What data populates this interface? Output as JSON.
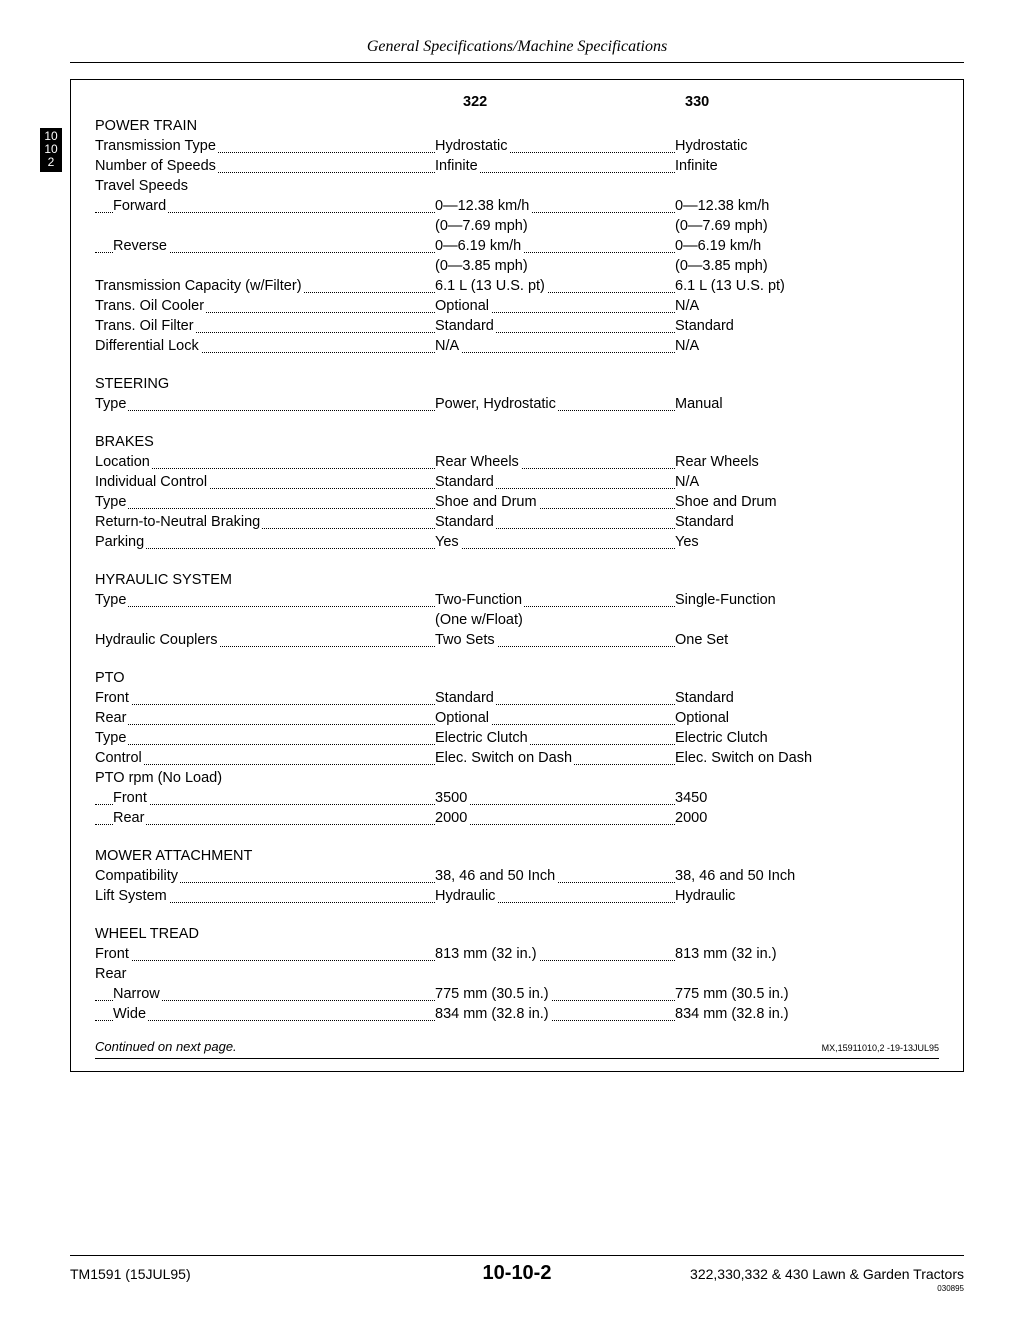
{
  "header": {
    "title": "General Specifications/Machine Specifications"
  },
  "sideTab": {
    "l1": "10",
    "l2": "10",
    "l3": "2"
  },
  "columns": {
    "c1": "322",
    "c2": "330"
  },
  "sections": [
    {
      "title": "POWER TRAIN",
      "rows": [
        {
          "label": "Transmission Type",
          "c1": "Hydrostatic",
          "c2": "Hydrostatic"
        },
        {
          "label": "Number of Speeds",
          "c1": "Infinite",
          "c2": "Infinite"
        },
        {
          "label": "Travel Speeds",
          "noValues": true
        },
        {
          "label": "Forward",
          "indent": true,
          "c1": "0—12.38 km/h",
          "c2": "0—12.38 km/h",
          "sub": {
            "c1": "(0—7.69 mph)",
            "c2": "(0—7.69 mph)"
          }
        },
        {
          "label": "Reverse",
          "indent": true,
          "c1": "0—6.19 km/h",
          "c2": "0—6.19 km/h",
          "sub": {
            "c1": "(0—3.85 mph)",
            "c2": "(0—3.85 mph)"
          }
        },
        {
          "label": "Transmission Capacity (w/Filter)",
          "c1": "6.1 L (13 U.S. pt)",
          "c2": "6.1 L (13 U.S. pt)"
        },
        {
          "label": "Trans. Oil Cooler",
          "c1": "Optional",
          "c2": "N/A"
        },
        {
          "label": "Trans. Oil Filter",
          "c1": "Standard",
          "c2": "Standard"
        },
        {
          "label": "Differential Lock",
          "c1": "N/A",
          "c2": "N/A"
        }
      ]
    },
    {
      "title": "STEERING",
      "rows": [
        {
          "label": "Type",
          "c1": "Power, Hydrostatic",
          "c2": "Manual"
        }
      ]
    },
    {
      "title": "BRAKES",
      "rows": [
        {
          "label": "Location",
          "c1": "Rear Wheels",
          "c2": "Rear Wheels"
        },
        {
          "label": "Individual Control",
          "c1": "Standard",
          "c2": "N/A"
        },
        {
          "label": "Type",
          "c1": "Shoe and Drum",
          "c2": "Shoe and Drum"
        },
        {
          "label": "Return-to-Neutral Braking",
          "c1": "Standard",
          "c2": "Standard"
        },
        {
          "label": "Parking",
          "c1": "Yes",
          "c2": "Yes"
        }
      ]
    },
    {
      "title": "HYRAULIC SYSTEM",
      "rows": [
        {
          "label": "Type",
          "c1": "Two-Function",
          "c2": "Single-Function",
          "sub": {
            "c1": "(One w/Float)",
            "c2": ""
          }
        },
        {
          "label": "Hydraulic Couplers",
          "c1": "Two Sets",
          "c2": "One Set"
        }
      ]
    },
    {
      "title": "PTO",
      "rows": [
        {
          "label": "Front",
          "c1": "Standard",
          "c2": "Standard"
        },
        {
          "label": "Rear",
          "c1": "Optional",
          "c2": "Optional"
        },
        {
          "label": "Type",
          "c1": "Electric Clutch",
          "c2": "Electric Clutch"
        },
        {
          "label": "Control",
          "c1": "Elec. Switch on Dash",
          "c2": "Elec. Switch on Dash"
        },
        {
          "label": "PTO rpm (No Load)",
          "noValues": true
        },
        {
          "label": "Front",
          "indent": true,
          "c1": "3500",
          "c2": "3450"
        },
        {
          "label": "Rear",
          "indent": true,
          "c1": "2000",
          "c2": "2000"
        }
      ]
    },
    {
      "title": "MOWER ATTACHMENT",
      "rows": [
        {
          "label": "Compatibility",
          "c1": "38, 46 and 50 Inch",
          "c2": "38, 46 and 50 Inch"
        },
        {
          "label": "Lift System",
          "c1": "Hydraulic",
          "c2": "Hydraulic"
        }
      ]
    },
    {
      "title": "WHEEL TREAD",
      "rows": [
        {
          "label": "Front",
          "c1": "813 mm (32 in.)",
          "c2": "813 mm (32 in.)"
        },
        {
          "label": "Rear",
          "noValues": true
        },
        {
          "label": "Narrow",
          "indent": true,
          "c1": "775 mm (30.5 in.)",
          "c2": "775 mm (30.5 in.)"
        },
        {
          "label": "Wide",
          "indent": true,
          "c1": "834 mm (32.8 in.)",
          "c2": "834 mm (32.8 in.)"
        }
      ]
    }
  ],
  "continued": {
    "text": "Continued on next page.",
    "code": "MX,15911010,2  -19-13JUL95"
  },
  "footer": {
    "left": "TM1591 (15JUL95)",
    "center": "10-10-2",
    "right": "322,330,332 & 430 Lawn & Garden Tractors",
    "tiny": "030895"
  }
}
